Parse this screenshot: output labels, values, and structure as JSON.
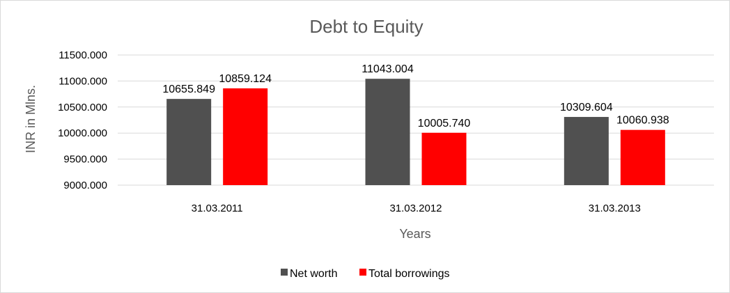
{
  "chart_data": {
    "type": "bar",
    "title": "Debt to Equity",
    "xlabel": "Years",
    "ylabel": "INR in Mlns.",
    "categories": [
      "31.03.2011",
      "31.03.2012",
      "31.03.2013"
    ],
    "series": [
      {
        "name": "Net worth",
        "color": "#505050",
        "values": [
          10655.849,
          11043.004,
          10309.604
        ],
        "labels": [
          "10655.849",
          "11043.004",
          "10309.604"
        ]
      },
      {
        "name": "Total borrowings",
        "color": "#ff0000",
        "values": [
          10859.124,
          10005.74,
          10060.938
        ],
        "labels": [
          "10859.124",
          "10005.740",
          "10060.938"
        ]
      }
    ],
    "ylim": [
      9000,
      11500
    ],
    "yticks": [
      9000,
      9500,
      10000,
      10500,
      11000,
      11500
    ],
    "ytick_labels": [
      "9000.000",
      "9500.000",
      "10000.000",
      "10500.000",
      "11000.000",
      "11500.000"
    ],
    "grid": true,
    "legend_position": "bottom"
  }
}
